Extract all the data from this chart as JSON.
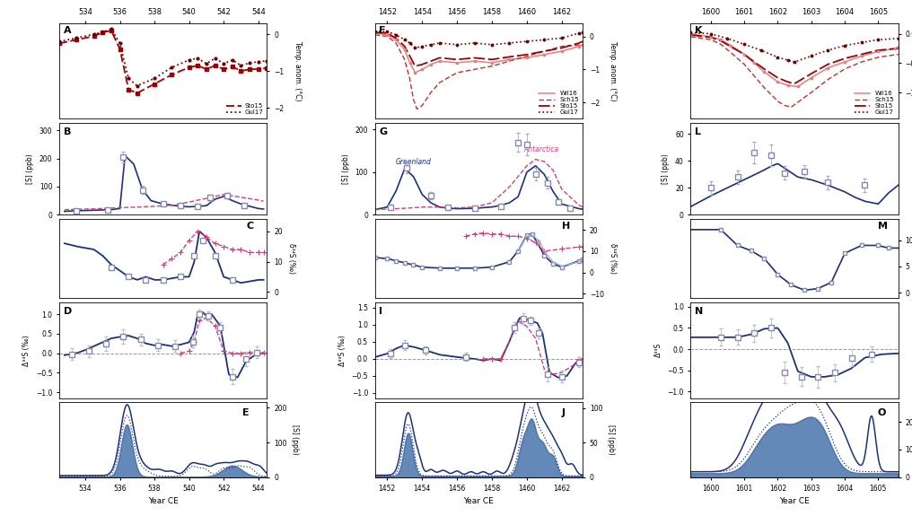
{
  "col1_xrange": [
    532.5,
    544.5
  ],
  "col2_xrange": [
    1451.3,
    1463.2
  ],
  "col3_xrange": [
    1599.4,
    1605.6
  ],
  "col1_xticks": [
    534,
    536,
    538,
    540,
    542,
    544
  ],
  "col2_xticks": [
    1452,
    1454,
    1456,
    1458,
    1460,
    1462
  ],
  "col3_xticks": [
    1600,
    1601,
    1602,
    1603,
    1604,
    1605
  ],
  "bg_color": "#ffffff",
  "blue_color": "#1a3080",
  "blue_fill_color": "#3060a0",
  "pink_color": "#d04080",
  "red_wil16": "#e08080",
  "red_sch15": "#c03030",
  "red_sto15": "#a00000",
  "red_gui17": "#700000"
}
